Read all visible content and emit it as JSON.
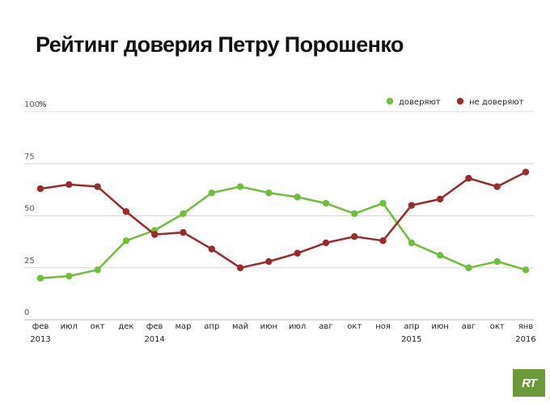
{
  "title": "Рейтинг доверия Петру Порошенко",
  "logo_text": "RT",
  "colors": {
    "trust": "#6fbf3a",
    "distrust": "#9b2a2a",
    "grid": "#d8d8d8"
  },
  "chart_data": {
    "type": "line",
    "title": "Рейтинг доверия Петру Порошенко",
    "ylabel": "%",
    "ylim": [
      0,
      100
    ],
    "yticks": [
      "100",
      "75",
      "50",
      "25",
      "0"
    ],
    "y_unit": "%",
    "x_months": [
      "фев",
      "июл",
      "окт",
      "дек",
      "фев",
      "мар",
      "апр",
      "май",
      "июн",
      "июл",
      "авг",
      "окт",
      "ноя",
      "апр",
      "июн",
      "авг",
      "окт",
      "янв"
    ],
    "x_years": [
      "2013",
      "",
      "",
      "",
      "2014",
      "",
      "",
      "",
      "",
      "",
      "",
      "",
      "",
      "2015",
      "",
      "",
      "",
      "2016"
    ],
    "legend_position": "top-right",
    "grid": true,
    "series": [
      {
        "name": "доверяют",
        "color": "#6fbf3a",
        "values": [
          20,
          21,
          24,
          38,
          43,
          51,
          61,
          64,
          61,
          59,
          56,
          51,
          56,
          37,
          31,
          25,
          28,
          24
        ]
      },
      {
        "name": "не доверяют",
        "color": "#9b2a2a",
        "values": [
          63,
          65,
          64,
          52,
          41,
          42,
          34,
          25,
          28,
          32,
          37,
          40,
          38,
          55,
          58,
          68,
          64,
          71
        ]
      }
    ]
  }
}
